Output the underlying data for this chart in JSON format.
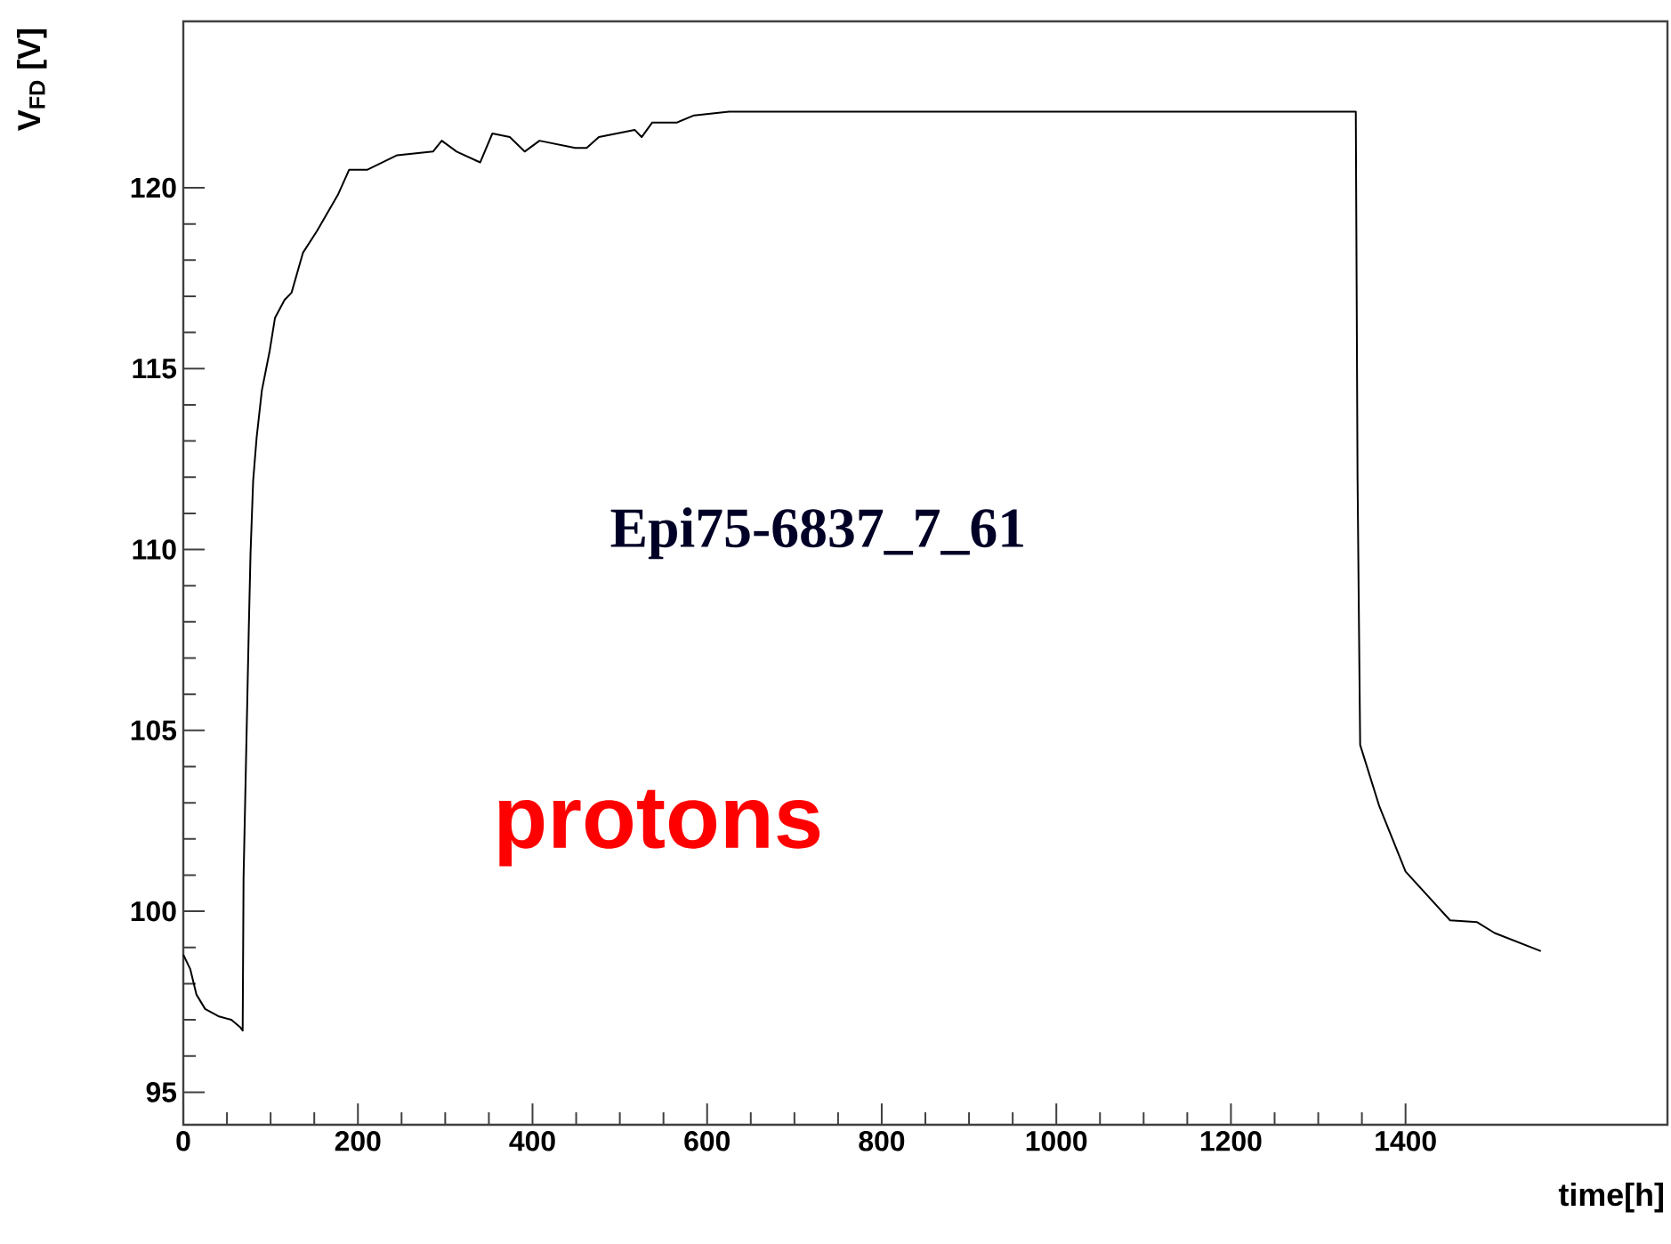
{
  "chart_data": {
    "type": "line",
    "xlabel": "time[h]",
    "ylabel": "V$_{FD}$ [V]",
    "annotations": [
      "Epi75-6837_7_61",
      "protons"
    ],
    "xlim": [
      0,
      1700
    ],
    "ylim": [
      94.1,
      124.6
    ],
    "xticks": [
      0,
      200,
      400,
      600,
      800,
      1000,
      1200,
      1400
    ],
    "yticks": [
      95,
      100,
      105,
      110,
      115,
      120
    ],
    "grid": false,
    "marker": "none",
    "line_style": "solid",
    "series": [
      {
        "color": "#000000",
        "x": [
          0,
          8,
          15,
          25,
          40,
          55,
          65,
          68,
          69,
          75,
          77,
          80,
          84,
          90,
          99,
          105,
          116,
          124,
          137,
          153,
          177,
          190,
          211,
          245,
          286,
          296,
          313,
          340,
          354,
          374,
          391,
          408,
          449,
          462,
          476,
          517,
          525,
          537,
          565,
          585,
          625,
          1000,
          1343,
          1345,
          1348,
          1370,
          1400,
          1451,
          1482,
          1502,
          1555
        ],
        "values": [
          98.8,
          98.4,
          97.7,
          97.3,
          97.1,
          97.0,
          96.8,
          96.7,
          100.9,
          107.8,
          109.9,
          111.9,
          113.1,
          114.4,
          115.5,
          116.4,
          116.9,
          117.1,
          118.2,
          118.8,
          119.8,
          120.5,
          120.5,
          120.9,
          121.0,
          121.3,
          121.0,
          120.7,
          121.5,
          121.4,
          121.0,
          121.3,
          121.1,
          121.1,
          121.4,
          121.6,
          121.4,
          121.8,
          121.8,
          122.0,
          122.1,
          122.1,
          122.1,
          112.0,
          104.6,
          102.9,
          101.1,
          99.75,
          99.7,
          99.4,
          98.9
        ]
      }
    ]
  }
}
